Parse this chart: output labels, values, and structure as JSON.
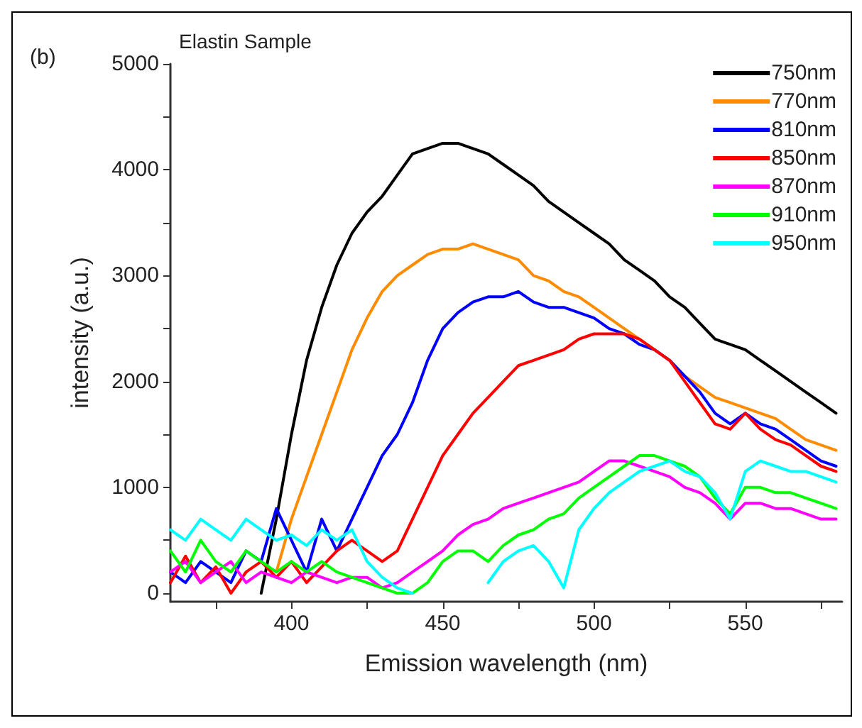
{
  "chart_data": {
    "type": "line",
    "title": "Elastin Sample",
    "xlabel": "Emission wavelength (nm)",
    "ylabel": "intensity (a.u.)",
    "annotations": [
      "(b)"
    ],
    "x": [
      360,
      365,
      370,
      375,
      380,
      385,
      390,
      395,
      400,
      405,
      410,
      415,
      420,
      425,
      430,
      435,
      440,
      445,
      450,
      455,
      460,
      465,
      470,
      475,
      480,
      485,
      490,
      495,
      500,
      505,
      510,
      515,
      520,
      525,
      530,
      535,
      540,
      545,
      550,
      555,
      560,
      565,
      570,
      575,
      580
    ],
    "xlim": [
      360,
      582
    ],
    "ylim": [
      -80,
      5000
    ],
    "xticks": [
      {
        "value": 375,
        "label": null
      },
      400,
      {
        "value": 425,
        "label": null
      },
      450,
      {
        "value": 475,
        "label": null
      },
      500,
      {
        "value": 525,
        "label": null
      },
      550,
      {
        "value": 575,
        "label": null
      }
    ],
    "yticks": [
      0,
      {
        "value": 500,
        "label": null
      },
      1000,
      {
        "value": 1500,
        "label": null
      },
      2000,
      {
        "value": 2500,
        "label": null
      },
      3000,
      {
        "value": 3500,
        "label": null
      },
      4000,
      {
        "value": 4500,
        "label": null
      },
      5000
    ],
    "grid": false,
    "legend": "top right",
    "marker": "none",
    "line_style": "solid",
    "series": [
      {
        "name": "750nm",
        "color": "#000000",
        "values": [
          null,
          null,
          null,
          null,
          null,
          null,
          0,
          700,
          1500,
          2200,
          2700,
          3100,
          3400,
          3600,
          3750,
          3950,
          4150,
          4200,
          4250,
          4250,
          4200,
          4150,
          4050,
          3950,
          3850,
          3700,
          3600,
          3500,
          3400,
          3300,
          3150,
          3050,
          2950,
          2800,
          2700,
          2550,
          2400,
          2350,
          2300,
          2200,
          2100,
          2000,
          1900,
          1800,
          1700
        ]
      },
      {
        "name": "770nm",
        "color": "#ff8c00",
        "values": [
          null,
          null,
          null,
          null,
          null,
          null,
          null,
          200,
          700,
          1100,
          1500,
          1900,
          2300,
          2600,
          2850,
          3000,
          3100,
          3200,
          3250,
          3250,
          3300,
          3250,
          3200,
          3150,
          3000,
          2950,
          2850,
          2800,
          2700,
          2600,
          2500,
          2400,
          2300,
          2200,
          2050,
          1950,
          1850,
          1800,
          1750,
          1700,
          1650,
          1550,
          1450,
          1400,
          1350
        ]
      },
      {
        "name": "810nm",
        "color": "#0000ff",
        "values": [
          200,
          100,
          300,
          200,
          100,
          400,
          300,
          800,
          500,
          200,
          700,
          400,
          700,
          1000,
          1300,
          1500,
          1800,
          2200,
          2500,
          2650,
          2750,
          2800,
          2800,
          2850,
          2750,
          2700,
          2700,
          2650,
          2600,
          2500,
          2450,
          2350,
          2300,
          2200,
          2050,
          1900,
          1700,
          1600,
          1700,
          1600,
          1550,
          1450,
          1350,
          1250,
          1200
        ]
      },
      {
        "name": "850nm",
        "color": "#ff0000",
        "values": [
          100,
          350,
          100,
          250,
          0,
          200,
          300,
          150,
          300,
          100,
          250,
          400,
          500,
          400,
          300,
          400,
          700,
          1000,
          1300,
          1500,
          1700,
          1850,
          2000,
          2150,
          2200,
          2250,
          2300,
          2400,
          2450,
          2450,
          2450,
          2400,
          2300,
          2200,
          2000,
          1800,
          1600,
          1550,
          1700,
          1550,
          1450,
          1400,
          1300,
          1200,
          1150
        ]
      },
      {
        "name": "870nm",
        "color": "#ff00ff",
        "values": [
          200,
          300,
          100,
          200,
          300,
          100,
          200,
          150,
          100,
          200,
          150,
          100,
          150,
          150,
          50,
          100,
          200,
          300,
          400,
          550,
          650,
          700,
          800,
          850,
          900,
          950,
          1000,
          1050,
          1150,
          1250,
          1250,
          1200,
          1150,
          1100,
          1000,
          950,
          850,
          700,
          850,
          850,
          800,
          800,
          750,
          700,
          700
        ]
      },
      {
        "name": "910nm",
        "color": "#00ff00",
        "values": [
          400,
          200,
          500,
          300,
          200,
          400,
          300,
          200,
          300,
          200,
          300,
          200,
          150,
          100,
          50,
          0,
          0,
          100,
          300,
          400,
          400,
          300,
          450,
          550,
          600,
          700,
          750,
          900,
          1000,
          1100,
          1200,
          1300,
          1300,
          1250,
          1200,
          1100,
          900,
          750,
          1000,
          1000,
          950,
          950,
          900,
          850,
          800
        ]
      },
      {
        "name": "950nm",
        "color": "#00ffff",
        "values": [
          600,
          500,
          700,
          600,
          500,
          700,
          600,
          500,
          550,
          450,
          600,
          500,
          600,
          300,
          150,
          50,
          0,
          null,
          null,
          null,
          null,
          100,
          300,
          400,
          450,
          300,
          50,
          600,
          800,
          950,
          1050,
          1150,
          1200,
          1250,
          1150,
          1100,
          950,
          700,
          1150,
          1250,
          1200,
          1150,
          1150,
          1100,
          1050
        ]
      }
    ]
  }
}
